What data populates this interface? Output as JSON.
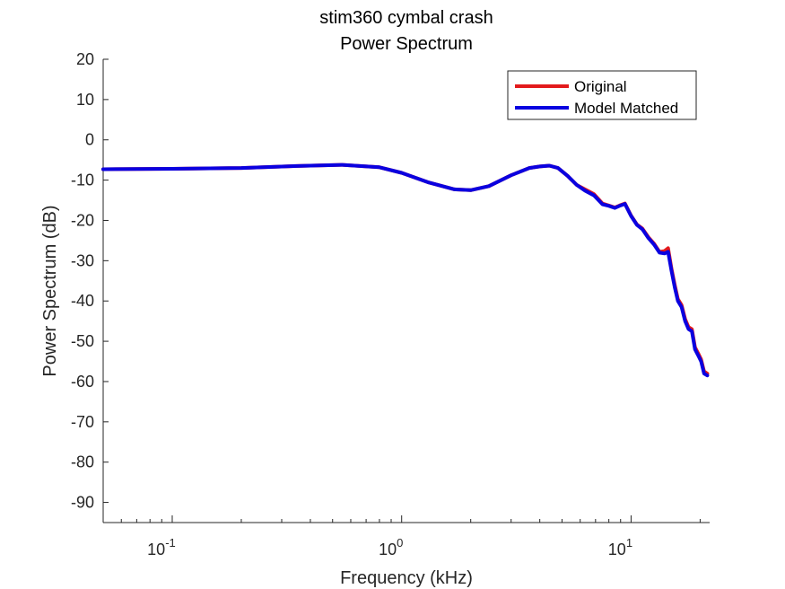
{
  "chart_data": {
    "type": "line",
    "title": [
      "stim360 cymbal crash",
      "Power Spectrum"
    ],
    "xlabel": "Frequency (kHz)",
    "ylabel": "Power Spectrum (dB)",
    "xscale": "log",
    "xlim": [
      0.05,
      22
    ],
    "ylim": [
      -95,
      20
    ],
    "yticks": [
      20,
      10,
      0,
      -10,
      -20,
      -30,
      -40,
      -50,
      -60,
      -70,
      -80,
      -90
    ],
    "xticks": [
      {
        "value": 0.1,
        "base": "10",
        "exp": "-1"
      },
      {
        "value": 1,
        "base": "10",
        "exp": "0"
      },
      {
        "value": 10,
        "base": "10",
        "exp": "1"
      }
    ],
    "grid": false,
    "legend_position": "top-right",
    "series": [
      {
        "name": "Original",
        "color": "#e31a1c",
        "x": [
          0.05,
          0.1,
          0.2,
          0.35,
          0.55,
          0.8,
          1.0,
          1.3,
          1.7,
          2.0,
          2.4,
          3.0,
          3.6,
          4.0,
          4.4,
          4.8,
          5.3,
          5.8,
          6.3,
          6.9,
          7.5,
          8.0,
          8.5,
          8.9,
          9.4,
          10.0,
          10.6,
          11.2,
          11.9,
          12.6,
          13.3,
          14.0,
          14.5,
          15.0,
          15.5,
          16.0,
          16.6,
          17.2,
          17.8,
          18.4,
          19.0,
          19.6,
          20.2,
          20.8,
          21.5
        ],
        "values": [
          -7.3,
          -7.2,
          -7.0,
          -6.5,
          -6.2,
          -6.8,
          -8.2,
          -10.5,
          -12.3,
          -12.5,
          -11.5,
          -8.8,
          -7.0,
          -6.6,
          -6.4,
          -7.0,
          -9.0,
          -11.2,
          -12.3,
          -13.5,
          -15.8,
          -16.3,
          -16.8,
          -16.3,
          -15.8,
          -18.8,
          -21.0,
          -22.0,
          -24.2,
          -25.8,
          -27.8,
          -27.6,
          -26.9,
          -32.0,
          -36.0,
          -39.5,
          -41.0,
          -44.5,
          -46.5,
          -47.0,
          -51.5,
          -53.0,
          -54.5,
          -57.5,
          -58.0
        ]
      },
      {
        "name": "Model Matched",
        "color": "#0a00e0",
        "x": [
          0.05,
          0.1,
          0.2,
          0.35,
          0.55,
          0.8,
          1.0,
          1.3,
          1.7,
          2.0,
          2.4,
          3.0,
          3.6,
          4.0,
          4.4,
          4.8,
          5.3,
          5.8,
          6.3,
          6.9,
          7.5,
          8.0,
          8.5,
          8.9,
          9.4,
          10.0,
          10.6,
          11.2,
          11.9,
          12.6,
          13.3,
          14.0,
          14.5,
          15.0,
          15.5,
          16.0,
          16.6,
          17.2,
          17.8,
          18.4,
          19.0,
          19.6,
          20.2,
          20.8,
          21.5
        ],
        "values": [
          -7.3,
          -7.2,
          -7.0,
          -6.5,
          -6.2,
          -6.8,
          -8.2,
          -10.5,
          -12.3,
          -12.5,
          -11.5,
          -8.8,
          -7.0,
          -6.6,
          -6.4,
          -7.0,
          -9.0,
          -11.2,
          -12.6,
          -13.8,
          -16.0,
          -16.4,
          -16.9,
          -16.4,
          -15.9,
          -18.9,
          -21.1,
          -22.2,
          -24.4,
          -26.0,
          -28.0,
          -28.2,
          -27.8,
          -32.5,
          -36.6,
          -40.0,
          -41.5,
          -45.0,
          -47.0,
          -47.5,
          -52.0,
          -53.5,
          -55.0,
          -58.0,
          -58.5
        ]
      }
    ]
  }
}
